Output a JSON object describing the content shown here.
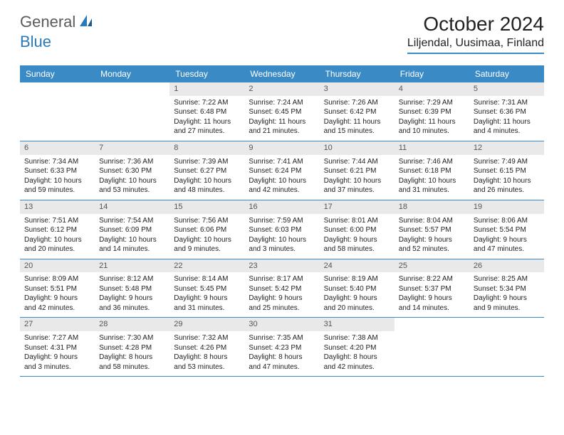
{
  "brand": {
    "part1": "General",
    "part2": "Blue"
  },
  "title": "October 2024",
  "location": "Liljendal, Uusimaa, Finland",
  "colors": {
    "header_bg": "#3a8ac6",
    "header_text": "#ffffff",
    "daynum_bg": "#e9e9e9",
    "daynum_text": "#555555",
    "body_text": "#222222",
    "rule": "#3a8ac6",
    "logo_gray": "#5a5a5a",
    "logo_blue": "#2a7ab9"
  },
  "dayNames": [
    "Sunday",
    "Monday",
    "Tuesday",
    "Wednesday",
    "Thursday",
    "Friday",
    "Saturday"
  ],
  "weeks": [
    [
      null,
      null,
      {
        "n": "1",
        "sr": "Sunrise: 7:22 AM",
        "ss": "Sunset: 6:48 PM",
        "dl": "Daylight: 11 hours and 27 minutes."
      },
      {
        "n": "2",
        "sr": "Sunrise: 7:24 AM",
        "ss": "Sunset: 6:45 PM",
        "dl": "Daylight: 11 hours and 21 minutes."
      },
      {
        "n": "3",
        "sr": "Sunrise: 7:26 AM",
        "ss": "Sunset: 6:42 PM",
        "dl": "Daylight: 11 hours and 15 minutes."
      },
      {
        "n": "4",
        "sr": "Sunrise: 7:29 AM",
        "ss": "Sunset: 6:39 PM",
        "dl": "Daylight: 11 hours and 10 minutes."
      },
      {
        "n": "5",
        "sr": "Sunrise: 7:31 AM",
        "ss": "Sunset: 6:36 PM",
        "dl": "Daylight: 11 hours and 4 minutes."
      }
    ],
    [
      {
        "n": "6",
        "sr": "Sunrise: 7:34 AM",
        "ss": "Sunset: 6:33 PM",
        "dl": "Daylight: 10 hours and 59 minutes."
      },
      {
        "n": "7",
        "sr": "Sunrise: 7:36 AM",
        "ss": "Sunset: 6:30 PM",
        "dl": "Daylight: 10 hours and 53 minutes."
      },
      {
        "n": "8",
        "sr": "Sunrise: 7:39 AM",
        "ss": "Sunset: 6:27 PM",
        "dl": "Daylight: 10 hours and 48 minutes."
      },
      {
        "n": "9",
        "sr": "Sunrise: 7:41 AM",
        "ss": "Sunset: 6:24 PM",
        "dl": "Daylight: 10 hours and 42 minutes."
      },
      {
        "n": "10",
        "sr": "Sunrise: 7:44 AM",
        "ss": "Sunset: 6:21 PM",
        "dl": "Daylight: 10 hours and 37 minutes."
      },
      {
        "n": "11",
        "sr": "Sunrise: 7:46 AM",
        "ss": "Sunset: 6:18 PM",
        "dl": "Daylight: 10 hours and 31 minutes."
      },
      {
        "n": "12",
        "sr": "Sunrise: 7:49 AM",
        "ss": "Sunset: 6:15 PM",
        "dl": "Daylight: 10 hours and 26 minutes."
      }
    ],
    [
      {
        "n": "13",
        "sr": "Sunrise: 7:51 AM",
        "ss": "Sunset: 6:12 PM",
        "dl": "Daylight: 10 hours and 20 minutes."
      },
      {
        "n": "14",
        "sr": "Sunrise: 7:54 AM",
        "ss": "Sunset: 6:09 PM",
        "dl": "Daylight: 10 hours and 14 minutes."
      },
      {
        "n": "15",
        "sr": "Sunrise: 7:56 AM",
        "ss": "Sunset: 6:06 PM",
        "dl": "Daylight: 10 hours and 9 minutes."
      },
      {
        "n": "16",
        "sr": "Sunrise: 7:59 AM",
        "ss": "Sunset: 6:03 PM",
        "dl": "Daylight: 10 hours and 3 minutes."
      },
      {
        "n": "17",
        "sr": "Sunrise: 8:01 AM",
        "ss": "Sunset: 6:00 PM",
        "dl": "Daylight: 9 hours and 58 minutes."
      },
      {
        "n": "18",
        "sr": "Sunrise: 8:04 AM",
        "ss": "Sunset: 5:57 PM",
        "dl": "Daylight: 9 hours and 52 minutes."
      },
      {
        "n": "19",
        "sr": "Sunrise: 8:06 AM",
        "ss": "Sunset: 5:54 PM",
        "dl": "Daylight: 9 hours and 47 minutes."
      }
    ],
    [
      {
        "n": "20",
        "sr": "Sunrise: 8:09 AM",
        "ss": "Sunset: 5:51 PM",
        "dl": "Daylight: 9 hours and 42 minutes."
      },
      {
        "n": "21",
        "sr": "Sunrise: 8:12 AM",
        "ss": "Sunset: 5:48 PM",
        "dl": "Daylight: 9 hours and 36 minutes."
      },
      {
        "n": "22",
        "sr": "Sunrise: 8:14 AM",
        "ss": "Sunset: 5:45 PM",
        "dl": "Daylight: 9 hours and 31 minutes."
      },
      {
        "n": "23",
        "sr": "Sunrise: 8:17 AM",
        "ss": "Sunset: 5:42 PM",
        "dl": "Daylight: 9 hours and 25 minutes."
      },
      {
        "n": "24",
        "sr": "Sunrise: 8:19 AM",
        "ss": "Sunset: 5:40 PM",
        "dl": "Daylight: 9 hours and 20 minutes."
      },
      {
        "n": "25",
        "sr": "Sunrise: 8:22 AM",
        "ss": "Sunset: 5:37 PM",
        "dl": "Daylight: 9 hours and 14 minutes."
      },
      {
        "n": "26",
        "sr": "Sunrise: 8:25 AM",
        "ss": "Sunset: 5:34 PM",
        "dl": "Daylight: 9 hours and 9 minutes."
      }
    ],
    [
      {
        "n": "27",
        "sr": "Sunrise: 7:27 AM",
        "ss": "Sunset: 4:31 PM",
        "dl": "Daylight: 9 hours and 3 minutes."
      },
      {
        "n": "28",
        "sr": "Sunrise: 7:30 AM",
        "ss": "Sunset: 4:28 PM",
        "dl": "Daylight: 8 hours and 58 minutes."
      },
      {
        "n": "29",
        "sr": "Sunrise: 7:32 AM",
        "ss": "Sunset: 4:26 PM",
        "dl": "Daylight: 8 hours and 53 minutes."
      },
      {
        "n": "30",
        "sr": "Sunrise: 7:35 AM",
        "ss": "Sunset: 4:23 PM",
        "dl": "Daylight: 8 hours and 47 minutes."
      },
      {
        "n": "31",
        "sr": "Sunrise: 7:38 AM",
        "ss": "Sunset: 4:20 PM",
        "dl": "Daylight: 8 hours and 42 minutes."
      },
      null,
      null
    ]
  ]
}
